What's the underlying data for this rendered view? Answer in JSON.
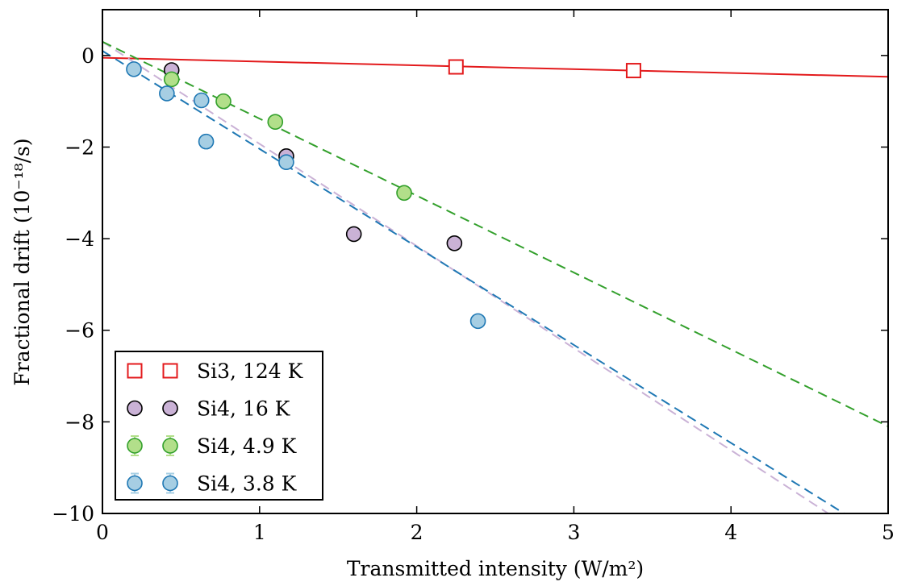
{
  "chart_data": {
    "type": "scatter",
    "title": "",
    "xlabel": "Transmitted intensity (W/m²)",
    "ylabel": "Fractional drift (10⁻¹⁸/s)",
    "xlim": [
      0,
      5
    ],
    "ylim": [
      -10,
      1
    ],
    "xticks": [
      0,
      1,
      2,
      3,
      4,
      5
    ],
    "yticks": [
      -10,
      -8,
      -6,
      -4,
      -2,
      0
    ],
    "xtick_labels": [
      "0",
      "1",
      "2",
      "3",
      "4",
      "5"
    ],
    "ytick_labels": [
      "−10",
      "−8",
      "−6",
      "−4",
      "−2",
      "0"
    ],
    "grid": false,
    "legend_position": "bottom-left",
    "series": [
      {
        "name": "Si3, 124 K",
        "marker": "square",
        "color": "#e31a1c",
        "face": "#ffffff",
        "line_style": "solid",
        "fit": [
          -0.05,
          -0.083
        ],
        "x": [
          2.25,
          3.38
        ],
        "y": [
          -0.25,
          -0.33
        ]
      },
      {
        "name": "Si4, 16 K",
        "marker": "circle",
        "color": "#000000",
        "face": "#cab2d6",
        "line_color": "#cab2d6",
        "line_style": "dashed",
        "fit": [
          0.3,
          -2.23
        ],
        "x": [
          0.44,
          1.17,
          1.6,
          2.24
        ],
        "y": [
          -0.32,
          -2.2,
          -3.9,
          -4.1
        ]
      },
      {
        "name": "Si4, 4.9 K",
        "marker": "circle",
        "color": "#33a02c",
        "face": "#b2df8a",
        "line_color": "#33a02c",
        "line_style": "dashed",
        "fit": [
          0.3,
          -1.68
        ],
        "x": [
          0.44,
          0.77,
          1.1,
          1.92
        ],
        "y": [
          -0.52,
          -1.0,
          -1.45,
          -3.0
        ]
      },
      {
        "name": "Si4, 3.8 K",
        "marker": "circle",
        "color": "#1f78b4",
        "face": "#a6cee3",
        "line_color": "#1f78b4",
        "line_style": "dashed",
        "fit": [
          0.1,
          -2.14
        ],
        "x": [
          0.2,
          0.41,
          0.63,
          0.66,
          1.17,
          2.39
        ],
        "y": [
          -0.3,
          -0.83,
          -0.98,
          -1.88,
          -2.33,
          -5.8
        ]
      }
    ]
  }
}
